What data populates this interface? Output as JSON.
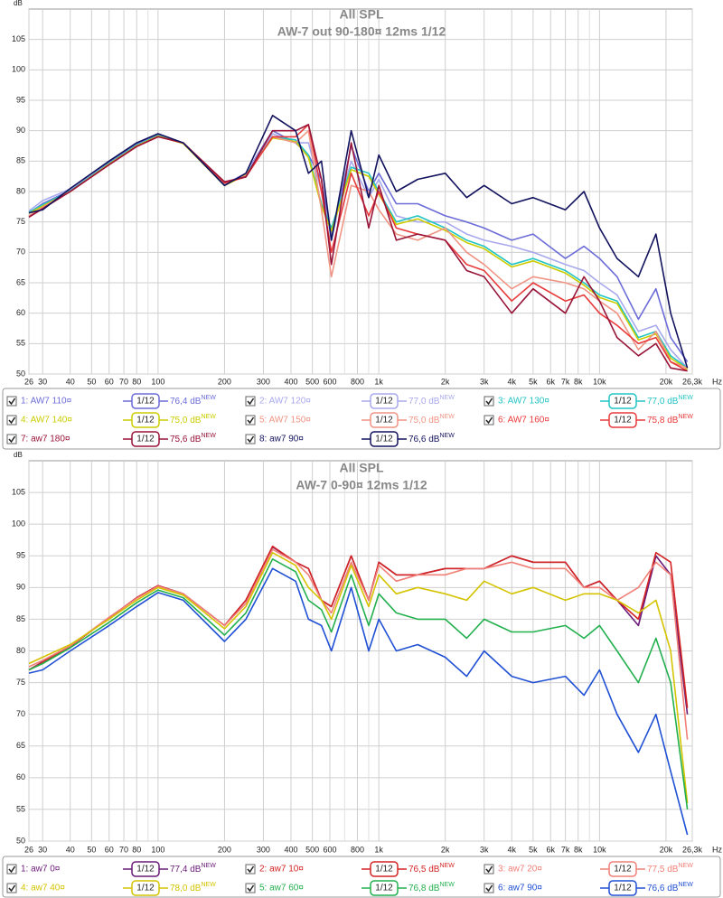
{
  "chart_data": [
    {
      "type": "line",
      "title": "All SPL",
      "subtitle": "AW-7 out 90-180¤ 12ms 1/12",
      "y_label": "dB",
      "x_unit": "Hz",
      "xscale": "log",
      "xlim": [
        26,
        26300
      ],
      "ylim": [
        50,
        110
      ],
      "xticks": [
        26,
        30,
        40,
        50,
        60,
        70,
        80,
        100,
        200,
        300,
        400,
        500,
        600,
        800,
        {
          "value": 1000,
          "label": "1k"
        },
        {
          "value": 2000,
          "label": "2k"
        },
        {
          "value": 3000,
          "label": "3k"
        },
        {
          "value": 4000,
          "label": "4k"
        },
        {
          "value": 5000,
          "label": "5k"
        },
        {
          "value": 6000,
          "label": "6k"
        },
        {
          "value": 7000,
          "label": "7k"
        },
        {
          "value": 8000,
          "label": "8k"
        },
        {
          "value": 10000,
          "label": "10k"
        },
        {
          "value": 20000,
          "label": "20k"
        },
        {
          "value": 26300,
          "label": "26,3k"
        }
      ],
      "xgrid_minor": [
        90,
        700,
        900,
        9000
      ],
      "yticks": [
        50,
        55,
        60,
        65,
        70,
        75,
        80,
        85,
        90,
        95,
        100,
        105
      ],
      "grid": true,
      "smoothing": "1/12",
      "badge": "NEW",
      "x": [
        26,
        30,
        40,
        60,
        80,
        100,
        130,
        200,
        250,
        330,
        420,
        480,
        550,
        610,
        750,
        900,
        1000,
        1200,
        1500,
        2000,
        2500,
        3000,
        4000,
        5000,
        7000,
        8500,
        10000,
        12000,
        15000,
        18000,
        21000,
        25000
      ],
      "series": [
        {
          "name": "1: AW7 110¤",
          "color": "#6c6cd8",
          "level": "76,4 dB",
          "values": [
            76.5,
            78,
            80.2,
            84.8,
            87.8,
            89.4,
            88,
            81,
            83,
            90,
            88,
            86,
            82,
            72,
            87.5,
            80,
            83,
            78,
            78,
            76,
            75,
            74,
            72,
            73,
            69,
            71,
            69,
            66,
            59,
            64,
            56,
            52
          ]
        },
        {
          "name": "2: AW7 120¤",
          "color": "#a8a8ec",
          "level": "77,0 dB",
          "values": [
            76.8,
            78.5,
            80.4,
            84.6,
            87.6,
            89.2,
            88,
            81.2,
            83,
            89.5,
            88,
            88,
            80,
            73,
            85,
            79,
            82,
            76,
            75,
            75,
            73,
            72,
            71,
            70,
            68,
            67,
            65,
            63,
            57,
            58,
            54,
            51
          ]
        },
        {
          "name": "3: AW7 130¤",
          "color": "#22c4c4",
          "level": "77,0 dB",
          "values": [
            76.6,
            77.8,
            80.1,
            84.6,
            87.6,
            89.2,
            88,
            81,
            82.8,
            89,
            88.5,
            86,
            78,
            74,
            84,
            83,
            80,
            75,
            76,
            74,
            72,
            71,
            68,
            69,
            67,
            65,
            63,
            62,
            56,
            57,
            53,
            51
          ]
        },
        {
          "name": "4: AW7 140¤",
          "color": "#cccc00",
          "level": "75,0 dB",
          "values": [
            76.4,
            77.6,
            80,
            84.5,
            87.5,
            89.1,
            87.9,
            81,
            82.7,
            88.8,
            88.2,
            85.6,
            77.6,
            73.5,
            83.6,
            82.5,
            79.6,
            74.6,
            75.5,
            73.6,
            71.6,
            70.6,
            67.6,
            68.6,
            66.6,
            64.6,
            62.6,
            61.6,
            55.6,
            56.6,
            52.6,
            50.8
          ]
        },
        {
          "name": "5: AW7 150¤",
          "color": "#f09484",
          "level": "75,0 dB",
          "values": [
            76,
            77.4,
            80,
            84.4,
            87.4,
            89,
            88,
            81.4,
            82.6,
            89,
            88,
            90,
            77,
            66,
            81,
            80,
            77,
            73,
            72,
            74,
            70,
            68,
            64,
            66,
            65,
            64,
            62,
            60,
            54,
            57,
            52,
            51
          ]
        },
        {
          "name": "6: AW7 160¤",
          "color": "#e83a3a",
          "level": "75,8 dB",
          "values": [
            75.8,
            77.2,
            80,
            84.4,
            87.4,
            89,
            88,
            81.4,
            82.4,
            89,
            89,
            91,
            80,
            70,
            83,
            76,
            80,
            74,
            73,
            72,
            68,
            67,
            62,
            65,
            62,
            63,
            60,
            58,
            55,
            56,
            52,
            50.5
          ]
        },
        {
          "name": "7: aw7 180¤",
          "color": "#981438",
          "level": "75,6 dB",
          "values": [
            75.8,
            77.2,
            80,
            84.4,
            87.4,
            89,
            88,
            81.6,
            82.4,
            90,
            90,
            91,
            82,
            68,
            88,
            74,
            81,
            72,
            73,
            72,
            67,
            66,
            60,
            64,
            60,
            66,
            62,
            56,
            53,
            55,
            51,
            50.5
          ]
        },
        {
          "name": "8: aw7 90¤",
          "color": "#12125e",
          "level": "76,6 dB",
          "values": [
            76.5,
            77,
            80.5,
            85,
            88,
            89.5,
            88,
            81,
            83,
            92.5,
            90,
            83,
            85,
            72,
            90,
            79,
            86,
            80,
            82,
            83,
            79,
            81,
            78,
            79,
            77,
            80,
            74,
            69,
            66,
            73,
            60,
            51
          ]
        }
      ]
    },
    {
      "type": "line",
      "title": "All SPL",
      "subtitle": "AW-7 0-90¤ 12ms 1/12",
      "y_label": "dB",
      "x_unit": "Hz",
      "xscale": "log",
      "xlim": [
        26,
        26300
      ],
      "ylim": [
        50,
        110
      ],
      "xticks": [
        26,
        30,
        40,
        50,
        60,
        70,
        80,
        100,
        200,
        300,
        400,
        500,
        600,
        800,
        {
          "value": 1000,
          "label": "1k"
        },
        {
          "value": 2000,
          "label": "2k"
        },
        {
          "value": 3000,
          "label": "3k"
        },
        {
          "value": 4000,
          "label": "4k"
        },
        {
          "value": 5000,
          "label": "5k"
        },
        {
          "value": 6000,
          "label": "6k"
        },
        {
          "value": 7000,
          "label": "7k"
        },
        {
          "value": 8000,
          "label": "8k"
        },
        {
          "value": 10000,
          "label": "10k"
        },
        {
          "value": 20000,
          "label": "20k"
        },
        {
          "value": 26300,
          "label": "26,3k"
        }
      ],
      "xgrid_minor": [
        90,
        700,
        900,
        9000
      ],
      "yticks": [
        50,
        55,
        60,
        65,
        70,
        75,
        80,
        85,
        90,
        95,
        100,
        105
      ],
      "grid": true,
      "smoothing": "1/12",
      "badge": "NEW",
      "x": [
        26,
        30,
        40,
        60,
        80,
        100,
        130,
        200,
        250,
        330,
        420,
        480,
        550,
        610,
        750,
        900,
        1000,
        1200,
        1500,
        2000,
        2500,
        3000,
        4000,
        5000,
        7000,
        8500,
        10000,
        12000,
        15000,
        18000,
        21000,
        25000
      ],
      "series": [
        {
          "name": "1: aw7 0¤",
          "color": "#6a1a78",
          "level": "77,4 dB",
          "values": [
            77,
            78.3,
            80.8,
            85.2,
            88.4,
            90.3,
            89,
            84,
            88,
            96.4,
            94,
            93,
            88,
            87,
            95,
            88,
            94,
            92,
            92,
            93,
            93,
            93,
            95,
            94,
            94,
            90,
            91,
            88,
            84,
            95,
            92,
            70
          ]
        },
        {
          "name": "2: aw7 10¤",
          "color": "#d42424",
          "level": "76,5 dB",
          "values": [
            77,
            78.2,
            80.7,
            85.2,
            88.4,
            90.3,
            89,
            84,
            88,
            96.5,
            94,
            93,
            88,
            87,
            95,
            88,
            94,
            92,
            92,
            93,
            93,
            93,
            95,
            94,
            94,
            90,
            91,
            88,
            85,
            95.5,
            94,
            71
          ]
        },
        {
          "name": "3: aw7 20¤",
          "color": "#f08078",
          "level": "77,5 dB",
          "values": [
            77.5,
            78.5,
            80.8,
            85.3,
            88.3,
            90.2,
            89,
            84,
            87.5,
            96,
            94,
            92,
            88,
            86,
            94,
            88,
            93.5,
            91,
            92,
            92,
            93,
            93,
            94,
            93,
            93,
            90,
            90,
            88,
            90,
            94,
            92,
            66
          ]
        },
        {
          "name": "4: aw7 40¤",
          "color": "#d4c400",
          "level": "78,0 dB",
          "values": [
            78,
            79,
            81,
            85,
            88,
            90,
            88.8,
            83.5,
            87,
            95.5,
            93.5,
            90,
            88,
            85,
            93.5,
            87,
            92,
            89,
            90,
            89,
            88,
            91,
            89,
            90,
            88,
            89,
            89,
            88,
            86,
            88,
            80,
            56
          ]
        },
        {
          "name": "5: aw7 60¤",
          "color": "#22b04e",
          "level": "76,8 dB",
          "values": [
            77,
            78,
            80.5,
            84.5,
            87.6,
            89.6,
            88.4,
            82.5,
            86,
            94.5,
            92.5,
            88,
            86.5,
            83,
            92,
            84,
            89,
            86,
            85,
            85,
            82,
            85,
            83,
            83,
            84,
            82,
            84,
            80,
            75,
            82,
            75,
            55
          ]
        },
        {
          "name": "6: aw7 90¤",
          "color": "#2050d4",
          "level": "76,6 dB",
          "values": [
            76.5,
            77,
            80,
            84,
            87,
            89.2,
            88,
            81.5,
            85,
            93,
            91,
            85,
            84,
            80,
            90,
            80,
            85,
            80,
            81,
            79,
            76,
            80,
            76,
            75,
            76,
            73,
            77,
            70,
            64,
            70,
            61,
            51
          ]
        }
      ]
    }
  ]
}
